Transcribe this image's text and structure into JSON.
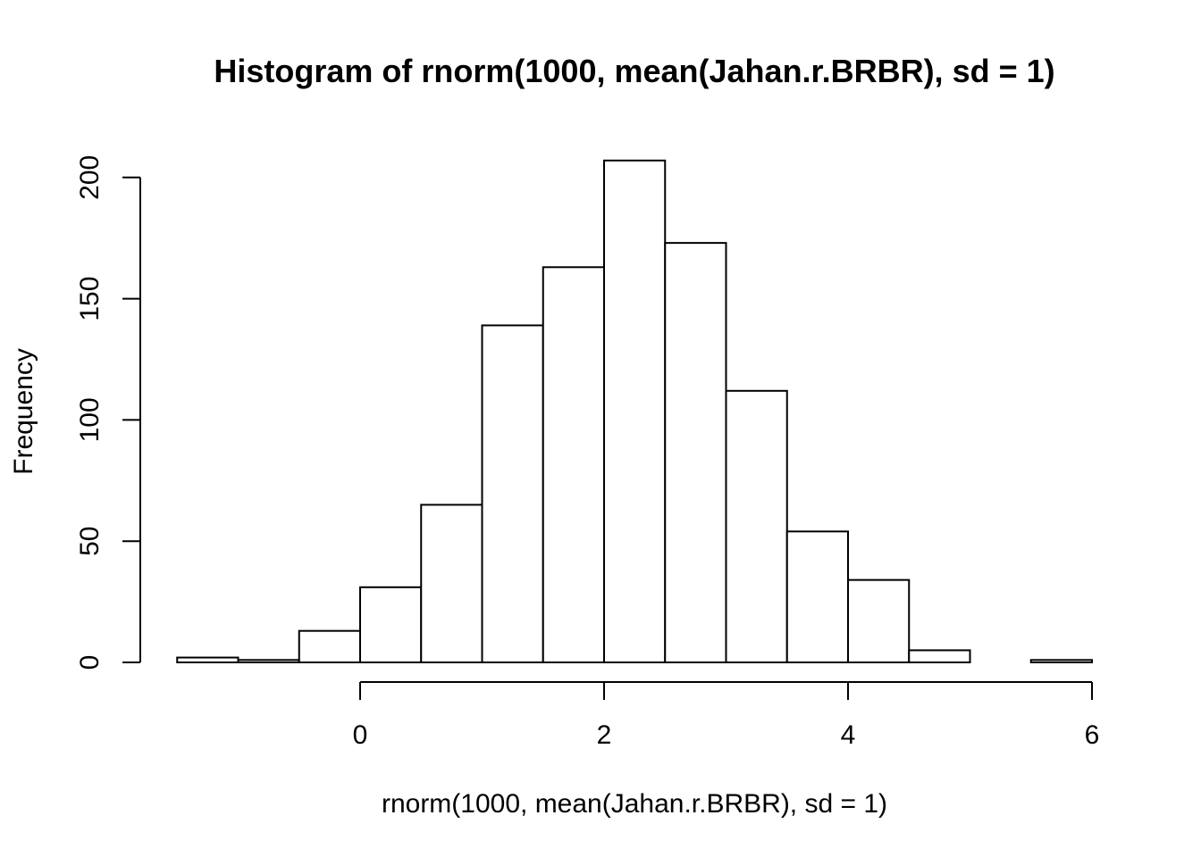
{
  "chart_data": {
    "type": "bar",
    "title": "Histogram of rnorm(1000, mean(Jahan.r.BRBR), sd = 1)",
    "xlabel": "rnorm(1000, mean(Jahan.r.BRBR), sd = 1)",
    "ylabel": "Frequency",
    "bins": [
      {
        "x0": -1.5,
        "x1": -1.0,
        "count": 2
      },
      {
        "x0": -1.0,
        "x1": -0.5,
        "count": 1
      },
      {
        "x0": -0.5,
        "x1": 0.0,
        "count": 13
      },
      {
        "x0": 0.0,
        "x1": 0.5,
        "count": 31
      },
      {
        "x0": 0.5,
        "x1": 1.0,
        "count": 65
      },
      {
        "x0": 1.0,
        "x1": 1.5,
        "count": 139
      },
      {
        "x0": 1.5,
        "x1": 2.0,
        "count": 163
      },
      {
        "x0": 2.0,
        "x1": 2.5,
        "count": 207
      },
      {
        "x0": 2.5,
        "x1": 3.0,
        "count": 173
      },
      {
        "x0": 3.0,
        "x1": 3.5,
        "count": 112
      },
      {
        "x0": 3.5,
        "x1": 4.0,
        "count": 54
      },
      {
        "x0": 4.0,
        "x1": 4.5,
        "count": 34
      },
      {
        "x0": 4.5,
        "x1": 5.0,
        "count": 5
      },
      {
        "x0": 5.0,
        "x1": 5.5,
        "count": 0
      },
      {
        "x0": 5.5,
        "x1": 6.0,
        "count": 1
      }
    ],
    "x_ticks": [
      0,
      2,
      4,
      6
    ],
    "y_ticks": [
      0,
      50,
      100,
      150,
      200
    ],
    "xlim": [
      -1.5,
      6
    ],
    "ylim": [
      0,
      207
    ],
    "grid": false,
    "colors": {
      "bar_fill": "#ffffff",
      "bar_stroke": "#000000"
    }
  }
}
